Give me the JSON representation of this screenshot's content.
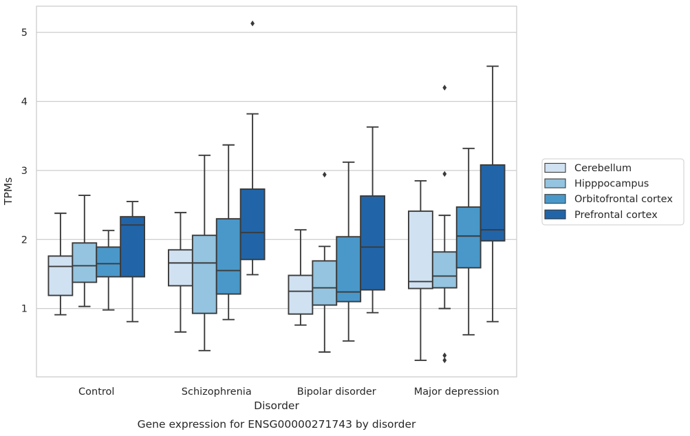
{
  "chart_data": {
    "type": "box",
    "title": "",
    "caption": "Gene expression for ENSG00000271743 by disorder",
    "xlabel": "Disorder",
    "ylabel": "TPMs",
    "categories": [
      "Control",
      "Schizophrenia",
      "Bipolar disorder",
      "Major depression"
    ],
    "ylim": [
      0.01,
      5.38
    ],
    "yticks": [
      1,
      2,
      3,
      4,
      5
    ],
    "grid": "horizontal",
    "legend_position": "right",
    "series": [
      {
        "name": "Cerebellum",
        "color": "#d0e1f2",
        "boxes": [
          {
            "min": 0.91,
            "q1": 1.19,
            "median": 1.61,
            "q3": 1.76,
            "max": 2.38,
            "outliers": []
          },
          {
            "min": 0.66,
            "q1": 1.33,
            "median": 1.66,
            "q3": 1.85,
            "max": 2.39,
            "outliers": []
          },
          {
            "min": 0.76,
            "q1": 0.92,
            "median": 1.25,
            "q3": 1.48,
            "max": 2.14,
            "outliers": []
          },
          {
            "min": 0.25,
            "q1": 1.29,
            "median": 1.39,
            "q3": 2.41,
            "max": 2.85,
            "outliers": []
          }
        ]
      },
      {
        "name": "Hipppocampus",
        "color": "#94c4df",
        "boxes": [
          {
            "min": 1.03,
            "q1": 1.38,
            "median": 1.62,
            "q3": 1.95,
            "max": 2.64,
            "outliers": []
          },
          {
            "min": 0.39,
            "q1": 0.93,
            "median": 1.66,
            "q3": 2.06,
            "max": 3.22,
            "outliers": []
          },
          {
            "min": 0.37,
            "q1": 1.05,
            "median": 1.3,
            "q3": 1.69,
            "max": 1.9,
            "outliers": [
              2.94
            ]
          },
          {
            "min": 1.0,
            "q1": 1.3,
            "median": 1.47,
            "q3": 1.82,
            "max": 2.35,
            "outliers": [
              4.2,
              2.95,
              0.32,
              0.25
            ]
          }
        ]
      },
      {
        "name": "Orbitofrontal cortex",
        "color": "#4a98c9",
        "boxes": [
          {
            "min": 0.98,
            "q1": 1.46,
            "median": 1.65,
            "q3": 1.89,
            "max": 2.13,
            "outliers": []
          },
          {
            "min": 0.84,
            "q1": 1.21,
            "median": 1.55,
            "q3": 2.3,
            "max": 3.37,
            "outliers": []
          },
          {
            "min": 0.53,
            "q1": 1.1,
            "median": 1.24,
            "q3": 2.04,
            "max": 3.12,
            "outliers": []
          },
          {
            "min": 0.62,
            "q1": 1.59,
            "median": 2.05,
            "q3": 2.47,
            "max": 3.32,
            "outliers": []
          }
        ]
      },
      {
        "name": "Prefrontal cortex",
        "color": "#2165a8",
        "boxes": [
          {
            "min": 0.81,
            "q1": 1.46,
            "median": 2.21,
            "q3": 2.33,
            "max": 2.55,
            "outliers": []
          },
          {
            "min": 1.49,
            "q1": 1.71,
            "median": 2.1,
            "q3": 2.73,
            "max": 3.82,
            "outliers": [
              5.13
            ]
          },
          {
            "min": 0.94,
            "q1": 1.27,
            "median": 1.89,
            "q3": 2.63,
            "max": 3.63,
            "outliers": []
          },
          {
            "min": 0.81,
            "q1": 1.98,
            "median": 2.14,
            "q3": 3.08,
            "max": 4.51,
            "outliers": []
          }
        ]
      }
    ]
  },
  "colors": {
    "edge": "#3a3a3a",
    "grid": "#cccccc",
    "frame": "#cccccc"
  }
}
